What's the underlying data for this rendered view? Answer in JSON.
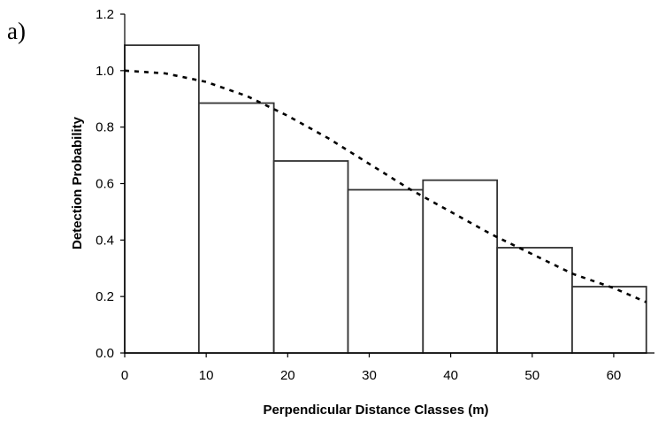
{
  "panel_label": "a)",
  "chart_data": {
    "type": "bar",
    "title": "",
    "xlabel": "Perpendicular Distance Classes (m)",
    "ylabel": "Detection Probability",
    "xlim": [
      0,
      65
    ],
    "ylim": [
      0,
      1.2
    ],
    "xticks": [
      0,
      10,
      20,
      30,
      40,
      50,
      60
    ],
    "xtick_labels": [
      "0",
      "10",
      "20",
      "30",
      "40",
      "50",
      "60"
    ],
    "yticks": [
      0,
      0.2,
      0.4,
      0.6,
      0.8,
      1.0,
      1.2
    ],
    "ytick_labels": [
      "0.0",
      "0.2",
      "0.4",
      "0.6",
      "0.8",
      "1.0",
      "1.2"
    ],
    "grid": false,
    "bars": [
      {
        "x0": 0,
        "x1": 9.1,
        "value": 1.09
      },
      {
        "x0": 9.1,
        "x1": 18.3,
        "value": 0.885
      },
      {
        "x0": 18.3,
        "x1": 27.4,
        "value": 0.68
      },
      {
        "x0": 27.4,
        "x1": 36.6,
        "value": 0.578
      },
      {
        "x0": 36.6,
        "x1": 45.7,
        "value": 0.612
      },
      {
        "x0": 45.7,
        "x1": 54.9,
        "value": 0.373
      },
      {
        "x0": 54.9,
        "x1": 64.0,
        "value": 0.235
      }
    ],
    "curve": {
      "style": "dotted",
      "x": [
        0,
        5,
        10,
        15,
        20,
        25,
        30,
        35,
        40,
        45,
        50,
        55,
        60,
        64
      ],
      "y": [
        1.0,
        0.99,
        0.96,
        0.91,
        0.84,
        0.76,
        0.67,
        0.58,
        0.5,
        0.42,
        0.35,
        0.28,
        0.23,
        0.18
      ]
    }
  }
}
